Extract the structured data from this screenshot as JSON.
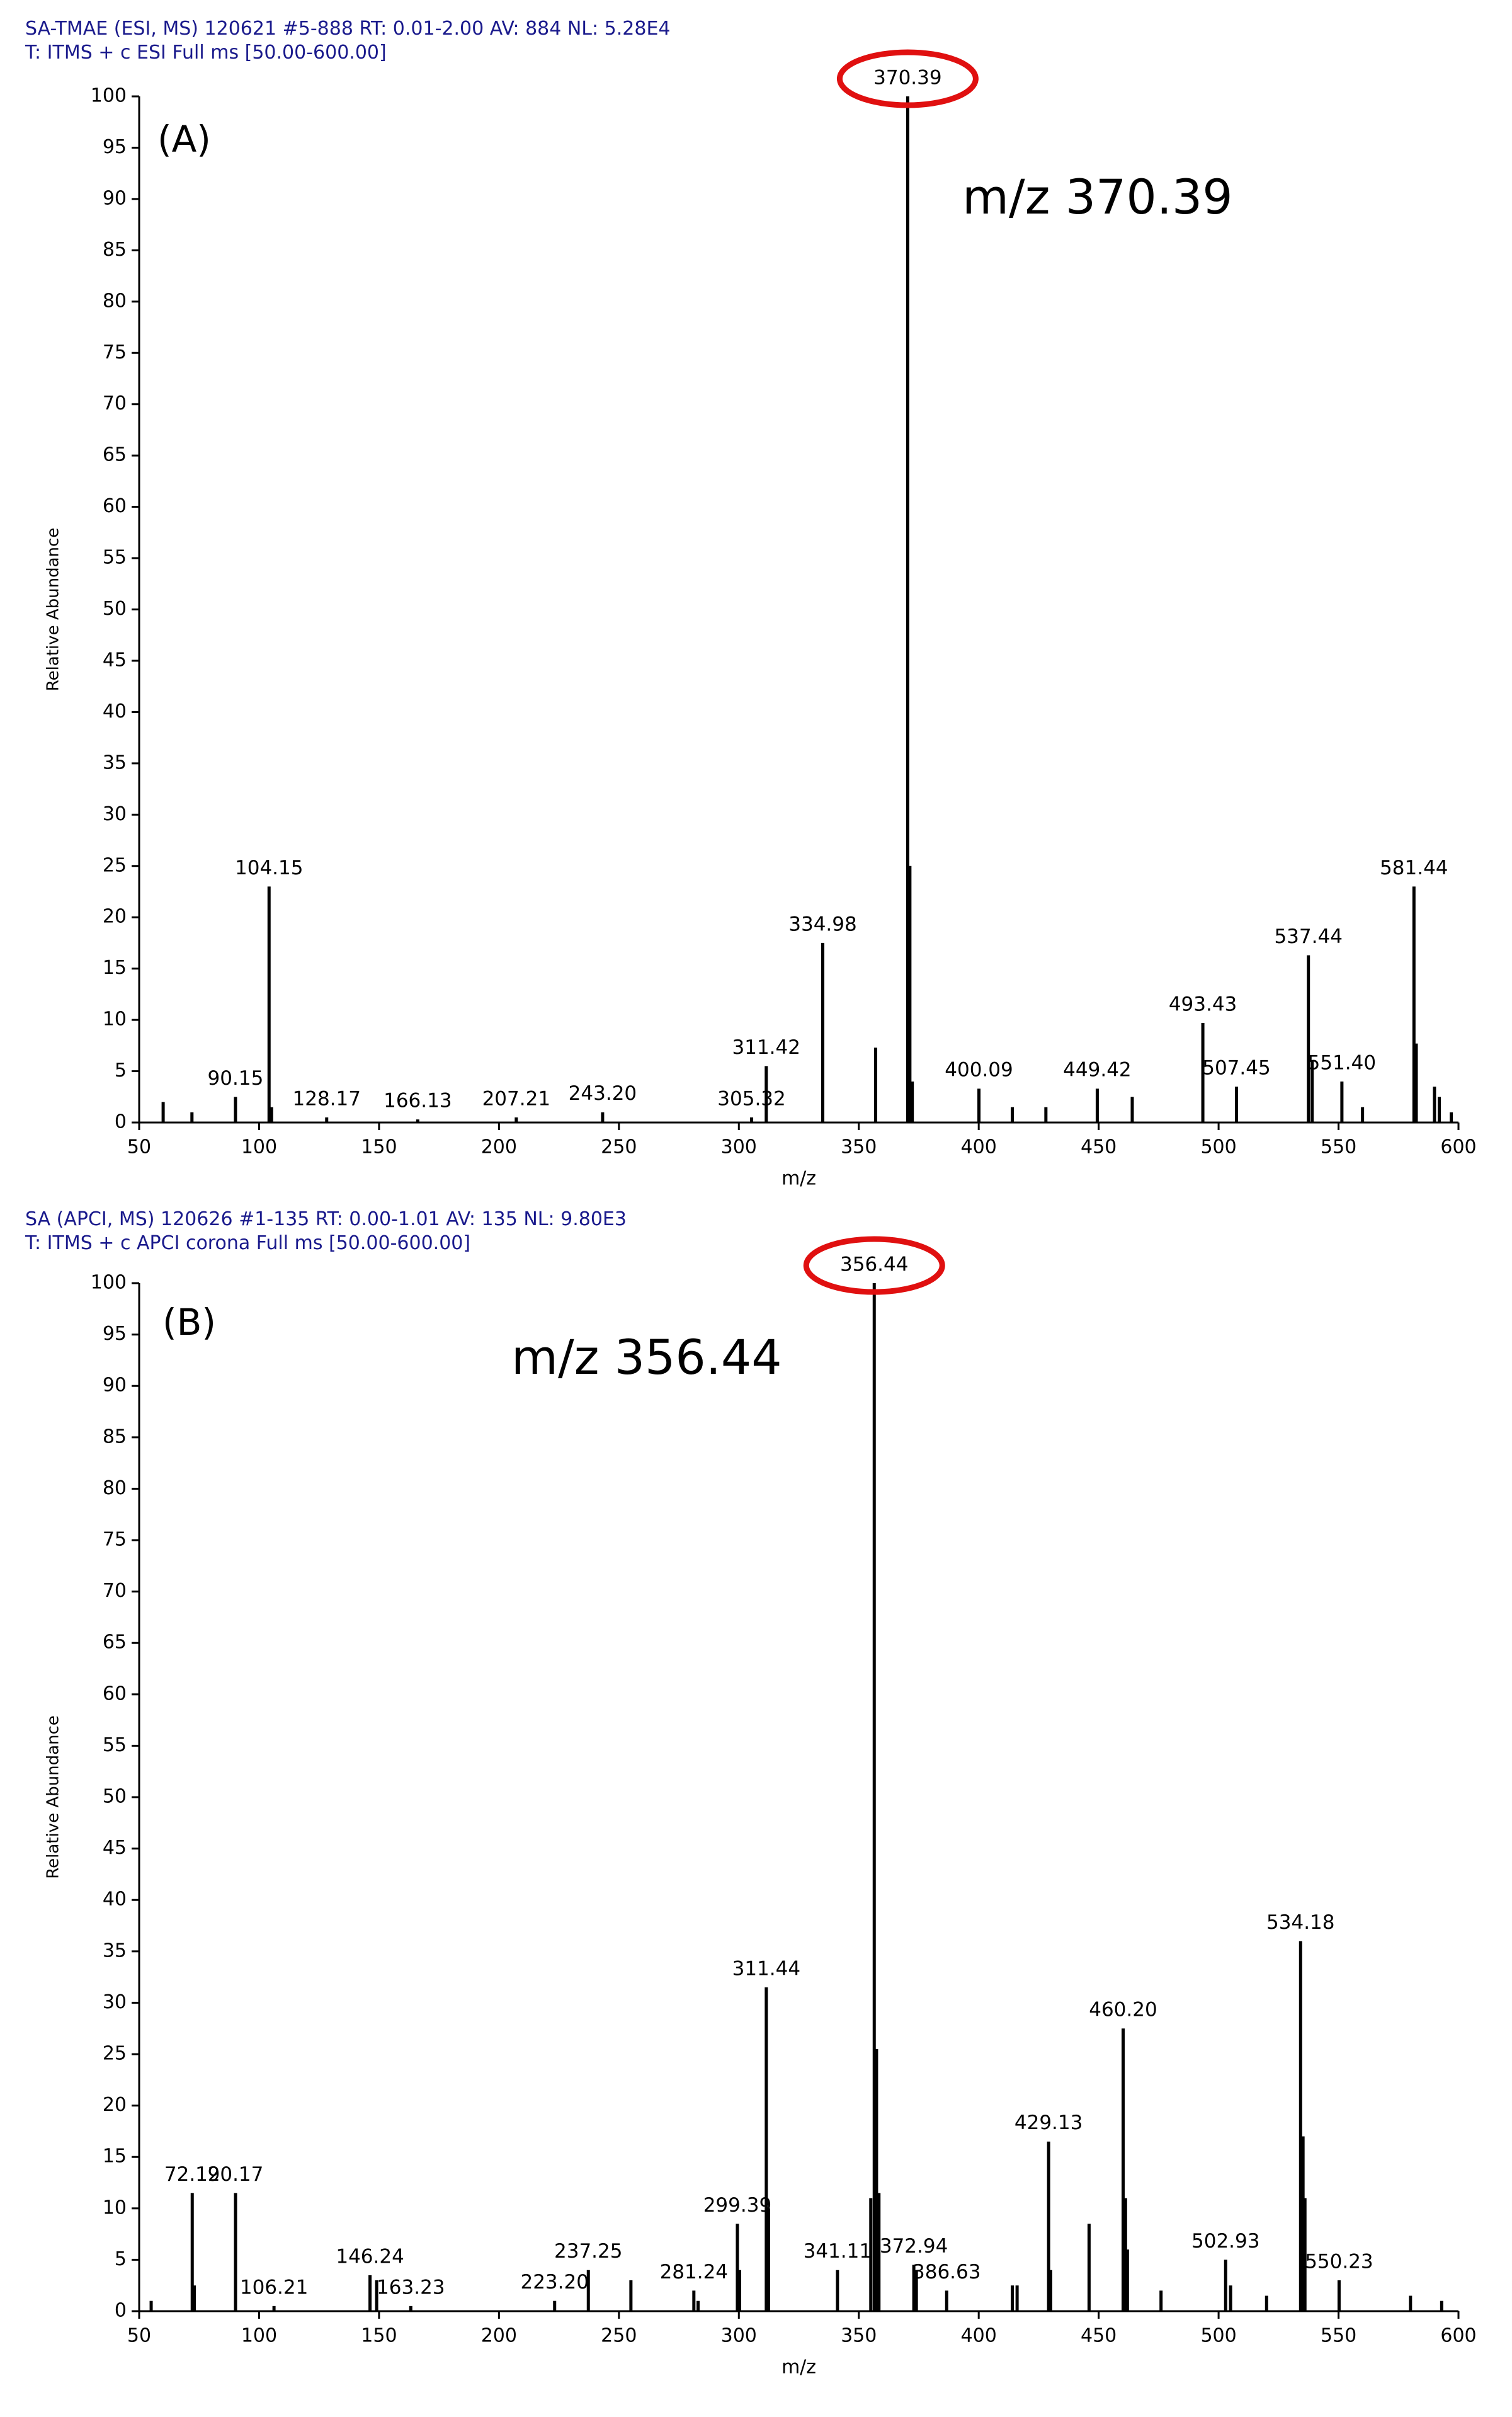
{
  "chart_data": [
    {
      "type": "stem",
      "header": [
        "SA-TMAE (ESI, MS)  120621 #5-888  RT: 0.01-2.00  AV: 884  NL: 5.28E4",
        "T: ITMS + c ESI Full ms [50.00-600.00]"
      ],
      "panel": "(A)",
      "annotation": "m/z 370.39",
      "xlabel": "m/z",
      "ylabel": "Relative Abundance",
      "xlim": [
        50,
        600
      ],
      "ylim": [
        0,
        100
      ],
      "xticks": [
        50,
        100,
        150,
        200,
        250,
        300,
        350,
        400,
        450,
        500,
        550,
        600
      ],
      "yticks": [
        0,
        5,
        10,
        15,
        20,
        25,
        30,
        35,
        40,
        45,
        50,
        55,
        60,
        65,
        70,
        75,
        80,
        85,
        90,
        95,
        100
      ],
      "color": "#000000",
      "highlight_color": "#e01010",
      "x": [
        60,
        72,
        90.15,
        104.15,
        105.2,
        128.17,
        166.13,
        207.21,
        243.2,
        305.32,
        311.42,
        334.98,
        357,
        370.39,
        371.3,
        372.3,
        400.09,
        414,
        428,
        449.42,
        464,
        493.43,
        507.45,
        537.44,
        539,
        551.4,
        560,
        581.44,
        582.4,
        590,
        592,
        597
      ],
      "values": [
        2,
        1,
        2.5,
        23,
        1.5,
        0.5,
        0.3,
        0.5,
        1,
        0.5,
        5.5,
        17.5,
        7.3,
        100,
        25,
        4,
        3.3,
        1.5,
        1.5,
        3.3,
        2.5,
        9.7,
        3.5,
        16.3,
        6,
        4,
        1.5,
        23,
        7.7,
        3.5,
        2.5,
        1
      ],
      "peak_labels": [
        null,
        null,
        "90.15",
        "104.15",
        null,
        "128.17",
        "166.13",
        "207.21",
        "243.20",
        "305.32",
        "311.42",
        "334.98",
        null,
        "370.39",
        null,
        null,
        "400.09",
        null,
        null,
        "449.42",
        null,
        "493.43",
        "507.45",
        "537.44",
        null,
        "551.40",
        null,
        "581.44",
        null,
        null,
        null,
        null
      ]
    },
    {
      "type": "stem",
      "header": [
        "SA (APCI, MS)  120626 #1-135  RT: 0.00-1.01  AV: 135  NL: 9.80E3",
        "T: ITMS + c APCI corona Full ms [50.00-600.00]"
      ],
      "panel": "(B)",
      "annotation": "m/z 356.44",
      "xlabel": "m/z",
      "ylabel": "Relative Abundance",
      "xlim": [
        50,
        600
      ],
      "ylim": [
        0,
        100
      ],
      "xticks": [
        50,
        100,
        150,
        200,
        250,
        300,
        350,
        400,
        450,
        500,
        550,
        600
      ],
      "yticks": [
        0,
        5,
        10,
        15,
        20,
        25,
        30,
        35,
        40,
        45,
        50,
        55,
        60,
        65,
        70,
        75,
        80,
        85,
        90,
        95,
        100
      ],
      "color": "#000000",
      "highlight_color": "#e01010",
      "x": [
        55,
        72.12,
        73,
        90.17,
        106.21,
        146.24,
        149,
        163.23,
        223.2,
        237.25,
        255,
        281.24,
        283,
        299.39,
        300.3,
        311.44,
        312.4,
        341.11,
        355,
        356.44,
        357.4,
        358.4,
        372.94,
        374,
        386.63,
        414,
        416,
        429.13,
        430,
        446,
        460.2,
        461.2,
        462,
        476,
        502.93,
        505,
        520,
        534.18,
        535.2,
        536,
        550.23,
        580,
        593
      ],
      "values": [
        1,
        11.5,
        2.5,
        11.5,
        0.5,
        3.5,
        3,
        0.5,
        1,
        4,
        3,
        2,
        1,
        8.5,
        4,
        31.5,
        10,
        4,
        11,
        100,
        25.5,
        11.5,
        4.5,
        4,
        2,
        2.5,
        2.5,
        16.5,
        4,
        8.5,
        27.5,
        11,
        6,
        2,
        5,
        2.5,
        1.5,
        36,
        17,
        11,
        3,
        1.5,
        1
      ],
      "peak_labels": [
        null,
        "72.12",
        null,
        "90.17",
        "106.21",
        "146.24",
        null,
        "163.23",
        "223.20",
        "237.25",
        null,
        "281.24",
        null,
        "299.39",
        null,
        "311.44",
        null,
        "341.11",
        null,
        "356.44",
        null,
        null,
        "372.94",
        null,
        "386.63",
        null,
        null,
        "429.13",
        null,
        null,
        "460.20",
        null,
        null,
        null,
        "502.93",
        null,
        null,
        "534.18",
        null,
        null,
        "550.23",
        null,
        null
      ]
    }
  ]
}
